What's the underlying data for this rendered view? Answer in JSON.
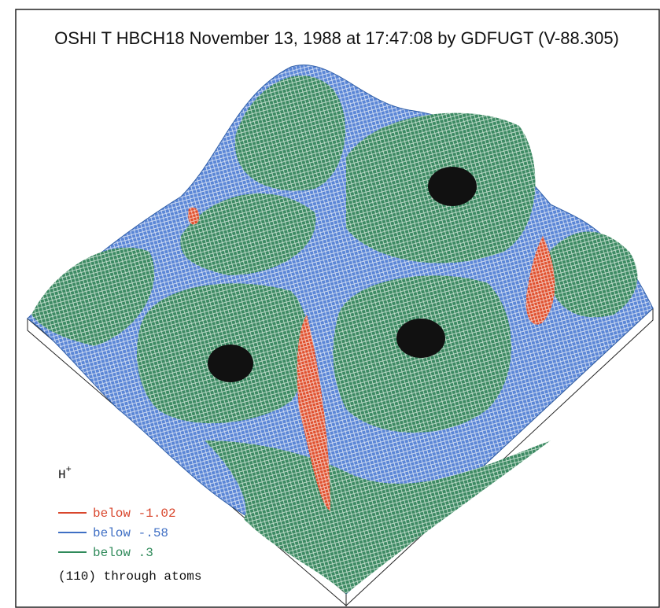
{
  "title": "OSHI T HBCH18 November 13, 1988 at 17:47:08 by GDFUGT (V-88.305)",
  "legend": {
    "symbol": "H",
    "superscript": "+",
    "items": [
      {
        "label": "below -1.02",
        "color": "#d9462c"
      },
      {
        "label": "below -.58",
        "color": "#3f6fc4"
      },
      {
        "label": "below .3",
        "color": "#2f8a5a"
      }
    ],
    "caption": "(110) through atoms"
  }
}
